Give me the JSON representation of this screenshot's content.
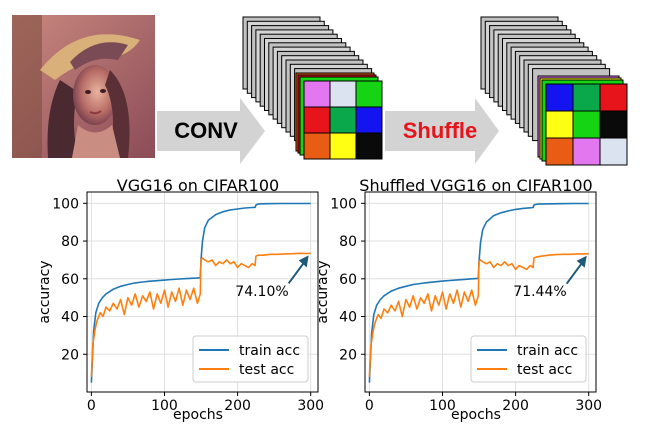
{
  "pipeline": {
    "conv_label": "CONV",
    "shuffle_label": "Shuffle",
    "shuffle_color": "#e8141c",
    "arrow_color": "#d3d3d3",
    "grid_before": [
      "#e277f0",
      "#dbe2f0",
      "#14d414",
      "#e8141c",
      "#0aa84a",
      "#1414f0",
      "#e85c14",
      "#ffff14",
      "#0a0a0a"
    ],
    "grid_after": [
      "#1414f0",
      "#0aa84a",
      "#e8141c",
      "#ffff14",
      "#14d414",
      "#0a0a0a",
      "#e85c14",
      "#e277f0",
      "#dbe2f0"
    ]
  },
  "chart_data": [
    {
      "type": "line",
      "title": "VGG16 on CIFAR100",
      "xlabel": "epochs",
      "ylabel": "accuracy",
      "xlim": [
        -6,
        310
      ],
      "ylim": [
        0,
        106
      ],
      "xticks": [
        0,
        100,
        200,
        300
      ],
      "yticks": [
        20,
        40,
        60,
        80,
        100
      ],
      "grid": true,
      "legend_position": "bottom-right",
      "annotation": "74.10%",
      "series": [
        {
          "name": "train acc",
          "color": "#1f77b4",
          "x": [
            0,
            3,
            6,
            10,
            15,
            20,
            30,
            40,
            50,
            60,
            70,
            80,
            90,
            100,
            110,
            120,
            130,
            140,
            149,
            150,
            152,
            155,
            160,
            170,
            180,
            190,
            200,
            210,
            220,
            224,
            225,
            227,
            230,
            240,
            260,
            280,
            300
          ],
          "y": [
            5,
            32,
            42,
            47,
            50,
            52,
            54.5,
            56,
            57,
            57.8,
            58.3,
            58.7,
            59,
            59.3,
            59.6,
            59.9,
            60.1,
            60.3,
            60.5,
            70,
            80,
            87,
            91,
            94,
            95.5,
            96.5,
            97,
            97.5,
            97.8,
            97.9,
            99,
            99.5,
            99.7,
            99.8,
            99.9,
            99.9,
            99.9
          ]
        },
        {
          "name": "test acc",
          "color": "#ff7f0e",
          "x": [
            0,
            2,
            5,
            8,
            12,
            16,
            20,
            25,
            30,
            35,
            40,
            45,
            50,
            55,
            60,
            65,
            70,
            75,
            80,
            85,
            90,
            95,
            100,
            105,
            110,
            115,
            120,
            125,
            130,
            135,
            140,
            145,
            149,
            150,
            152,
            155,
            160,
            165,
            170,
            175,
            180,
            185,
            190,
            195,
            200,
            205,
            210,
            215,
            220,
            224,
            225,
            228,
            235,
            245,
            255,
            265,
            275,
            285,
            295,
            300
          ],
          "y": [
            8,
            25,
            33,
            38,
            42,
            40,
            45,
            43,
            47,
            44,
            49,
            41,
            50,
            46,
            52,
            45,
            51,
            48,
            53,
            44,
            52,
            47,
            54,
            45,
            53,
            48,
            55,
            46,
            54,
            49,
            55,
            47,
            52,
            70,
            71,
            70,
            69,
            70,
            67,
            69,
            68,
            70,
            68,
            69,
            66,
            68,
            67,
            66,
            68,
            67,
            72,
            72.5,
            72.5,
            73,
            73,
            73.2,
            73.3,
            73.5,
            73.4,
            73.5
          ]
        }
      ]
    },
    {
      "type": "line",
      "title": "Shuffled VGG16 on CIFAR100",
      "xlabel": "epochs",
      "ylabel": "accuracy",
      "xlim": [
        -6,
        310
      ],
      "ylim": [
        0,
        106
      ],
      "xticks": [
        0,
        100,
        200,
        300
      ],
      "yticks": [
        20,
        40,
        60,
        80,
        100
      ],
      "grid": true,
      "legend_position": "bottom-right",
      "annotation": "71.44%",
      "series": [
        {
          "name": "train acc",
          "color": "#1f77b4",
          "x": [
            0,
            3,
            6,
            10,
            15,
            20,
            30,
            40,
            50,
            60,
            70,
            80,
            90,
            100,
            110,
            120,
            130,
            140,
            149,
            150,
            152,
            155,
            160,
            170,
            180,
            190,
            200,
            210,
            220,
            224,
            225,
            227,
            230,
            240,
            260,
            280,
            300
          ],
          "y": [
            5,
            31,
            41,
            46,
            49,
            51,
            53.5,
            55,
            56,
            57,
            57.5,
            58,
            58.4,
            58.8,
            59.1,
            59.4,
            59.7,
            60,
            60.2,
            69,
            79,
            86,
            90,
            93.5,
            95,
            96,
            96.8,
            97.3,
            97.6,
            97.8,
            99,
            99.4,
            99.6,
            99.7,
            99.8,
            99.9,
            99.9
          ]
        },
        {
          "name": "test acc",
          "color": "#ff7f0e",
          "x": [
            0,
            2,
            5,
            8,
            12,
            16,
            20,
            25,
            30,
            35,
            40,
            45,
            50,
            55,
            60,
            65,
            70,
            75,
            80,
            85,
            90,
            95,
            100,
            105,
            110,
            115,
            120,
            125,
            130,
            135,
            140,
            145,
            149,
            150,
            152,
            155,
            160,
            165,
            170,
            175,
            180,
            185,
            190,
            195,
            200,
            205,
            210,
            215,
            220,
            224,
            225,
            228,
            235,
            245,
            255,
            265,
            275,
            285,
            295,
            300
          ],
          "y": [
            8,
            24,
            32,
            37,
            41,
            39,
            44,
            42,
            46,
            43,
            48,
            40,
            49,
            45,
            51,
            44,
            50,
            47,
            52,
            43,
            51,
            46,
            53,
            44,
            52,
            47,
            54,
            45,
            53,
            48,
            54,
            46,
            51,
            69,
            70,
            69,
            68,
            69,
            66,
            68,
            67,
            69,
            67,
            68,
            65,
            67,
            66,
            65,
            67,
            66,
            71,
            71.5,
            72,
            72.5,
            72.8,
            73,
            73,
            73.2,
            73.2,
            73.3
          ]
        }
      ]
    }
  ]
}
